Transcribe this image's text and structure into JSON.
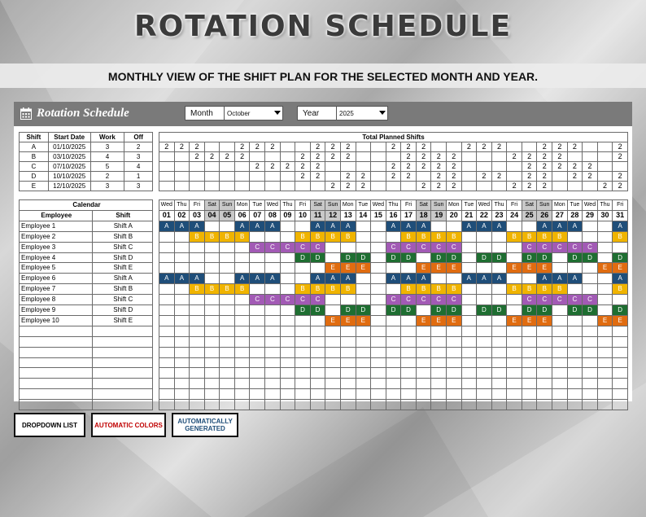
{
  "title": "ROTATION SCHEDULE",
  "subtitle": "MONTHLY VIEW OF THE SHIFT PLAN FOR THE SELECTED MONTH AND YEAR.",
  "sheet": {
    "app_title": "Rotation Schedule",
    "month_label": "Month",
    "month_value": "October",
    "year_label": "Year",
    "year_value": "2025"
  },
  "shift_table": {
    "headers": [
      "Shift",
      "Start Date",
      "Work",
      "Off"
    ],
    "rows": [
      [
        "A",
        "01/10/2025",
        "3",
        "2"
      ],
      [
        "B",
        "03/10/2025",
        "4",
        "3"
      ],
      [
        "C",
        "07/10/2025",
        "5",
        "4"
      ],
      [
        "D",
        "10/10/2025",
        "2",
        "1"
      ],
      [
        "E",
        "12/10/2025",
        "3",
        "3"
      ]
    ]
  },
  "totals_title": "Total Planned Shifts",
  "calendar_label": "Calendar",
  "employee_headers": [
    "Employee",
    "Shift"
  ],
  "weekdays": [
    "Wed",
    "Thu",
    "Fri",
    "Sat",
    "Sun",
    "Mon",
    "Tue",
    "Wed",
    "Thu",
    "Fri",
    "Sat",
    "Sun",
    "Mon",
    "Tue",
    "Wed",
    "Thu",
    "Fri",
    "Sat",
    "Sun",
    "Mon",
    "Tue",
    "Wed",
    "Thu",
    "Fri",
    "Sat",
    "Sun",
    "Mon",
    "Tue",
    "Wed",
    "Thu",
    "Fri"
  ],
  "day_numbers": [
    "01",
    "02",
    "03",
    "04",
    "05",
    "06",
    "07",
    "08",
    "09",
    "10",
    "11",
    "12",
    "13",
    "14",
    "15",
    "16",
    "17",
    "18",
    "19",
    "20",
    "21",
    "22",
    "23",
    "24",
    "25",
    "26",
    "27",
    "28",
    "29",
    "30",
    "31"
  ],
  "shift_patterns": {
    "A": "AAA..AAA..AAA..AAA..AAA..AAA..A",
    "B": "..BBBB...BBBB...BBBB...BBBB...B",
    "C": "......CCCCC....CCCCC....CCCCC..",
    "D": ".........DD.DD.DD.DD.DD.DD.DD.D",
    "E": "...........EEE...EEE...EEE...EE"
  },
  "totals_value": "2",
  "employees": [
    {
      "name": "Employee 1",
      "shift": "Shift A",
      "code": "A"
    },
    {
      "name": "Employee 2",
      "shift": "Shift B",
      "code": "B"
    },
    {
      "name": "Employee 3",
      "shift": "Shift C",
      "code": "C"
    },
    {
      "name": "Employee 4",
      "shift": "Shift D",
      "code": "D"
    },
    {
      "name": "Employee 5",
      "shift": "Shift E",
      "code": "E"
    },
    {
      "name": "Employee 6",
      "shift": "Shift A",
      "code": "A"
    },
    {
      "name": "Employee 7",
      "shift": "Shift B",
      "code": "B"
    },
    {
      "name": "Employee 8",
      "shift": "Shift C",
      "code": "C"
    },
    {
      "name": "Employee 9",
      "shift": "Shift D",
      "code": "D"
    },
    {
      "name": "Employee 10",
      "shift": "Shift E",
      "code": "E"
    }
  ],
  "empty_rows": 8,
  "shift_colors": {
    "A": "#1f4e79",
    "B": "#f0b400",
    "C": "#a25ab5",
    "D": "#1e6e31",
    "E": "#e06c10"
  },
  "weekend_color": "#c9c9c9",
  "badges": {
    "dropdown": "DROPDOWN LIST",
    "colors": "AUTOMATIC COLORS",
    "generated": "AUTOMATICALLY GENERATED"
  }
}
